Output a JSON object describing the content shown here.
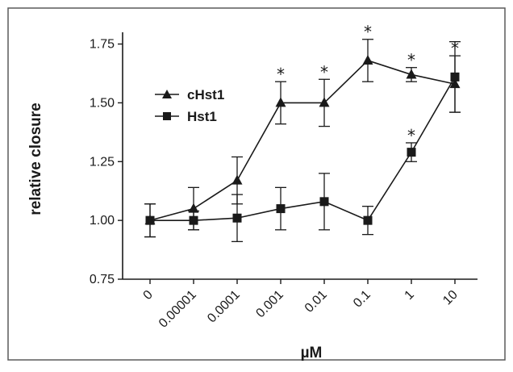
{
  "chart_data": {
    "type": "line",
    "categories": [
      "0",
      "0.00001",
      "0.0001",
      "0.001",
      "0.01",
      "0.1",
      "1",
      "10"
    ],
    "xlabel": "µM",
    "ylabel": "relative closure",
    "ylim": [
      0.75,
      1.8
    ],
    "yticks": [
      "0.75",
      "1.00",
      "1.25",
      "1.50",
      "1.75"
    ],
    "legend_position": "top-left",
    "grid": false,
    "series": [
      {
        "name": "cHst1",
        "marker": "triangle",
        "values": [
          1.0,
          1.05,
          1.17,
          1.5,
          1.5,
          1.68,
          1.62,
          1.58
        ],
        "errors": [
          0.07,
          0.09,
          0.1,
          0.09,
          0.1,
          0.09,
          0.03,
          0.12
        ],
        "significant": [
          false,
          false,
          false,
          true,
          true,
          true,
          true,
          true
        ]
      },
      {
        "name": "Hst1",
        "marker": "square",
        "values": [
          1.0,
          1.0,
          1.01,
          1.05,
          1.08,
          1.0,
          1.29,
          1.61
        ],
        "errors": [
          0.07,
          0.04,
          0.1,
          0.09,
          0.12,
          0.06,
          0.04,
          0.15
        ],
        "significant": [
          false,
          false,
          false,
          false,
          false,
          false,
          true,
          false
        ]
      }
    ],
    "significance_marker": "*",
    "colors": {
      "ink": "#1a1a1a",
      "frame": "#5a5a5a"
    }
  }
}
